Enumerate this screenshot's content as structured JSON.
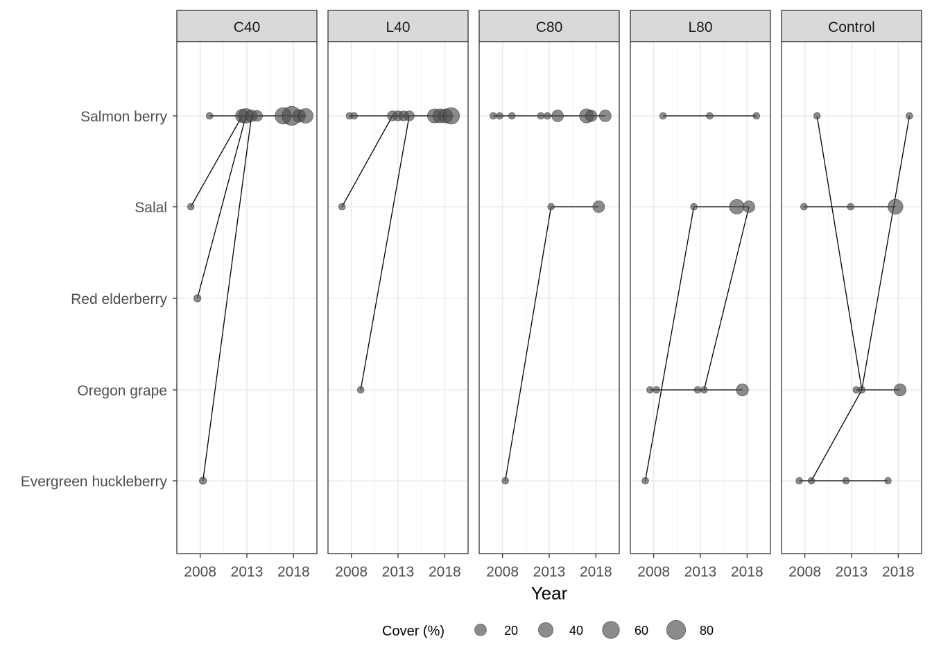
{
  "chart_data": {
    "type": "scatter",
    "xlabel": "Year",
    "ylabel": "",
    "facets": [
      "C40",
      "L40",
      "C80",
      "L80",
      "Control"
    ],
    "categories": [
      "Salmon berry",
      "Salal",
      "Red elderberry",
      "Oregon grape",
      "Evergreen huckleberry"
    ],
    "x_ticks": [
      "2008",
      "2013",
      "2018"
    ],
    "xlim": [
      2005.5,
      2020.5
    ],
    "grid": true,
    "legend": {
      "title": "Cover (%)",
      "position": "bottom",
      "sizes": [
        20,
        40,
        60,
        80
      ],
      "labels": [
        "20",
        "40",
        "60",
        "80"
      ]
    },
    "colors": {
      "point_fill": "#4d4d4d",
      "line": "#000000",
      "strip_bg": "#d9d9d9",
      "grid": "#ebebeb"
    },
    "panels": [
      {
        "name": "C40",
        "points": [
          {
            "species": "Salal",
            "year": 2007,
            "cover": 2
          },
          {
            "species": "Salmon berry",
            "year": 2009,
            "cover": 2
          },
          {
            "species": "Red elderberry",
            "year": 2007.7,
            "cover": 3
          },
          {
            "species": "Evergreen huckleberry",
            "year": 2008.3,
            "cover": 3
          },
          {
            "species": "Salmon berry",
            "year": 2012.5,
            "cover": 30
          },
          {
            "species": "Salmon berry",
            "year": 2012.9,
            "cover": 40
          },
          {
            "species": "Salmon berry",
            "year": 2013.5,
            "cover": 20
          },
          {
            "species": "Salmon berry",
            "year": 2014.1,
            "cover": 15
          },
          {
            "species": "Salmon berry",
            "year": 2016.9,
            "cover": 55
          },
          {
            "species": "Salmon berry",
            "year": 2017.8,
            "cover": 80
          },
          {
            "species": "Salmon berry",
            "year": 2018.6,
            "cover": 25
          },
          {
            "species": "Salmon berry",
            "year": 2019.3,
            "cover": 40
          }
        ],
        "lines": [
          [
            {
              "species": "Salmon berry",
              "year": 2009
            },
            {
              "species": "Salmon berry",
              "year": 2019.3
            }
          ],
          [
            {
              "species": "Salal",
              "year": 2007
            },
            {
              "species": "Salmon berry",
              "year": 2012.5
            }
          ],
          [
            {
              "species": "Red elderberry",
              "year": 2007.7
            },
            {
              "species": "Salmon berry",
              "year": 2012.9
            }
          ],
          [
            {
              "species": "Evergreen huckleberry",
              "year": 2008.3
            },
            {
              "species": "Salmon berry",
              "year": 2013.5
            }
          ]
        ]
      },
      {
        "name": "L40",
        "points": [
          {
            "species": "Salal",
            "year": 2007,
            "cover": 2
          },
          {
            "species": "Salmon berry",
            "year": 2007.8,
            "cover": 2
          },
          {
            "species": "Salmon berry",
            "year": 2008.3,
            "cover": 2
          },
          {
            "species": "Oregon grape",
            "year": 2009,
            "cover": 2
          },
          {
            "species": "Salmon berry",
            "year": 2012.4,
            "cover": 12
          },
          {
            "species": "Salmon berry",
            "year": 2013,
            "cover": 12
          },
          {
            "species": "Salmon berry",
            "year": 2013.6,
            "cover": 12
          },
          {
            "species": "Salmon berry",
            "year": 2014.2,
            "cover": 12
          },
          {
            "species": "Salmon berry",
            "year": 2016.9,
            "cover": 35
          },
          {
            "species": "Salmon berry",
            "year": 2017.5,
            "cover": 35
          },
          {
            "species": "Salmon berry",
            "year": 2018.1,
            "cover": 35
          },
          {
            "species": "Salmon berry",
            "year": 2018.7,
            "cover": 55
          }
        ],
        "lines": [
          [
            {
              "species": "Salmon berry",
              "year": 2007.8
            },
            {
              "species": "Salmon berry",
              "year": 2018.7
            }
          ],
          [
            {
              "species": "Salal",
              "year": 2007
            },
            {
              "species": "Salmon berry",
              "year": 2012.4
            }
          ],
          [
            {
              "species": "Oregon grape",
              "year": 2009
            },
            {
              "species": "Salmon berry",
              "year": 2014.2
            }
          ]
        ]
      },
      {
        "name": "C80",
        "points": [
          {
            "species": "Salmon berry",
            "year": 2007,
            "cover": 2
          },
          {
            "species": "Salmon berry",
            "year": 2007.7,
            "cover": 2
          },
          {
            "species": "Salmon berry",
            "year": 2009,
            "cover": 2
          },
          {
            "species": "Salmon berry",
            "year": 2012.1,
            "cover": 2
          },
          {
            "species": "Salmon berry",
            "year": 2012.8,
            "cover": 2
          },
          {
            "species": "Salmon berry",
            "year": 2013.9,
            "cover": 20
          },
          {
            "species": "Salmon berry",
            "year": 2017,
            "cover": 35
          },
          {
            "species": "Salmon berry",
            "year": 2017.5,
            "cover": 18
          },
          {
            "species": "Salmon berry",
            "year": 2019,
            "cover": 20
          },
          {
            "species": "Salal",
            "year": 2013.2,
            "cover": 2
          },
          {
            "species": "Salal",
            "year": 2018.3,
            "cover": 20
          },
          {
            "species": "Evergreen huckleberry",
            "year": 2008.3,
            "cover": 2
          }
        ],
        "lines": [
          [
            {
              "species": "Salmon berry",
              "year": 2007
            },
            {
              "species": "Salmon berry",
              "year": 2019
            }
          ],
          [
            {
              "species": "Salal",
              "year": 2013.2
            },
            {
              "species": "Salal",
              "year": 2018.3
            }
          ],
          [
            {
              "species": "Evergreen huckleberry",
              "year": 2008.3
            },
            {
              "species": "Salal",
              "year": 2013.2
            }
          ]
        ]
      },
      {
        "name": "L80",
        "points": [
          {
            "species": "Salmon berry",
            "year": 2009,
            "cover": 2
          },
          {
            "species": "Salmon berry",
            "year": 2014,
            "cover": 2
          },
          {
            "species": "Salmon berry",
            "year": 2019,
            "cover": 2
          },
          {
            "species": "Salal",
            "year": 2012.3,
            "cover": 2
          },
          {
            "species": "Salal",
            "year": 2016.9,
            "cover": 40
          },
          {
            "species": "Salal",
            "year": 2018.2,
            "cover": 20
          },
          {
            "species": "Oregon grape",
            "year": 2007.6,
            "cover": 2
          },
          {
            "species": "Oregon grape",
            "year": 2008.3,
            "cover": 2
          },
          {
            "species": "Oregon grape",
            "year": 2012.7,
            "cover": 2
          },
          {
            "species": "Oregon grape",
            "year": 2013.4,
            "cover": 2
          },
          {
            "species": "Oregon grape",
            "year": 2017.5,
            "cover": 22
          },
          {
            "species": "Evergreen huckleberry",
            "year": 2007.1,
            "cover": 2
          }
        ],
        "lines": [
          [
            {
              "species": "Salmon berry",
              "year": 2009
            },
            {
              "species": "Salmon berry",
              "year": 2019
            }
          ],
          [
            {
              "species": "Salal",
              "year": 2012.3
            },
            {
              "species": "Salal",
              "year": 2018.2
            }
          ],
          [
            {
              "species": "Oregon grape",
              "year": 2007.6
            },
            {
              "species": "Oregon grape",
              "year": 2017.5
            }
          ],
          [
            {
              "species": "Evergreen huckleberry",
              "year": 2007.1
            },
            {
              "species": "Salal",
              "year": 2012.3
            }
          ],
          [
            {
              "species": "Oregon grape",
              "year": 2013.4
            },
            {
              "species": "Salal",
              "year": 2018.2
            }
          ]
        ]
      },
      {
        "name": "Control",
        "points": [
          {
            "species": "Salmon berry",
            "year": 2009.3,
            "cover": 2
          },
          {
            "species": "Salmon berry",
            "year": 2019.2,
            "cover": 2
          },
          {
            "species": "Salal",
            "year": 2007.9,
            "cover": 2
          },
          {
            "species": "Salal",
            "year": 2012.9,
            "cover": 2
          },
          {
            "species": "Salal",
            "year": 2017.7,
            "cover": 42
          },
          {
            "species": "Oregon grape",
            "year": 2013.5,
            "cover": 2
          },
          {
            "species": "Oregon grape",
            "year": 2014.1,
            "cover": 2
          },
          {
            "species": "Oregon grape",
            "year": 2018.2,
            "cover": 22
          },
          {
            "species": "Evergreen huckleberry",
            "year": 2007.4,
            "cover": 2
          },
          {
            "species": "Evergreen huckleberry",
            "year": 2008.7,
            "cover": 2
          },
          {
            "species": "Evergreen huckleberry",
            "year": 2012.4,
            "cover": 2
          },
          {
            "species": "Evergreen huckleberry",
            "year": 2016.9,
            "cover": 2
          }
        ],
        "lines": [
          [
            {
              "species": "Salal",
              "year": 2007.9
            },
            {
              "species": "Salal",
              "year": 2017.7
            }
          ],
          [
            {
              "species": "Oregon grape",
              "year": 2013.5
            },
            {
              "species": "Oregon grape",
              "year": 2018.2
            }
          ],
          [
            {
              "species": "Evergreen huckleberry",
              "year": 2007.4
            },
            {
              "species": "Evergreen huckleberry",
              "year": 2016.9
            }
          ],
          [
            {
              "species": "Salmon berry",
              "year": 2009.3
            },
            {
              "species": "Oregon grape",
              "year": 2014.1
            }
          ],
          [
            {
              "species": "Oregon grape",
              "year": 2014.1
            },
            {
              "species": "Salmon berry",
              "year": 2019.2
            }
          ],
          [
            {
              "species": "Evergreen huckleberry",
              "year": 2008.7
            },
            {
              "species": "Oregon grape",
              "year": 2014.1
            }
          ]
        ]
      }
    ]
  }
}
